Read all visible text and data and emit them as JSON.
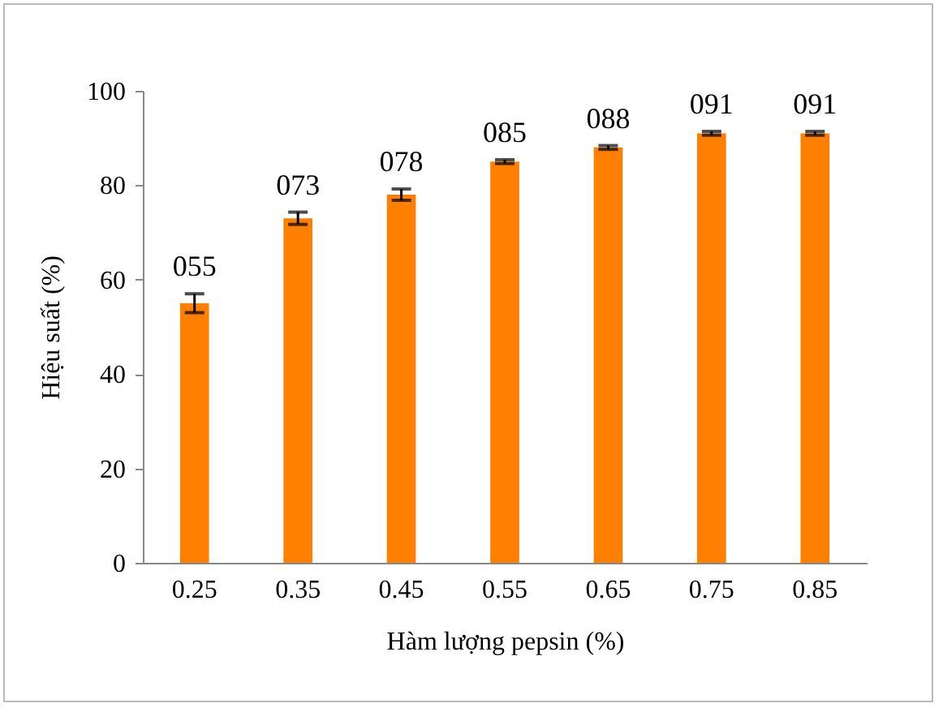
{
  "chart_data": {
    "type": "bar",
    "xlabel": "Hàm lượng pepsin (%)",
    "ylabel": "Hiệu suất (%)",
    "categories": [
      "0.25",
      "0.35",
      "0.45",
      "0.55",
      "0.65",
      "0.75",
      "0.85"
    ],
    "values": [
      55,
      73,
      78,
      85,
      88,
      91,
      91
    ],
    "errors": [
      2,
      1.3,
      1.2,
      0.4,
      0.4,
      0.4,
      0.4
    ],
    "value_labels": [
      "055",
      "073",
      "078",
      "085",
      "088",
      "091",
      "091"
    ],
    "color": "#ff8000",
    "ylim": [
      0,
      100
    ],
    "yticks": [
      0,
      20,
      40,
      60,
      80,
      100
    ],
    "grid": false
  }
}
